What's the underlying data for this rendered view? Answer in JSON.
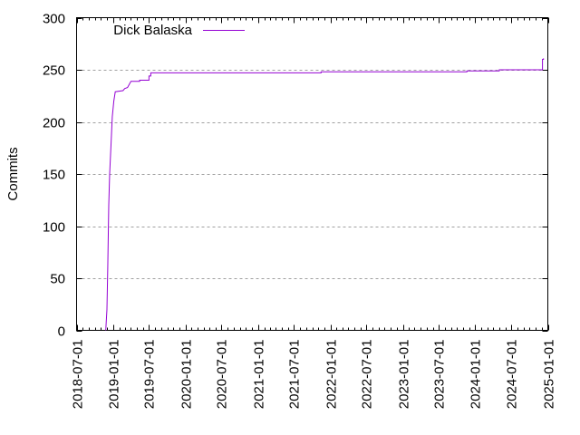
{
  "chart_data": {
    "type": "line",
    "title": "",
    "xlabel": "",
    "ylabel": "Commits",
    "ylim": [
      0,
      300
    ],
    "xlim": [
      "2018-07-01",
      "2025-01-01"
    ],
    "yticks": [
      0,
      50,
      100,
      150,
      200,
      250,
      300
    ],
    "xticks": [
      "2018-07-01",
      "2019-01-01",
      "2019-07-01",
      "2020-01-01",
      "2020-07-01",
      "2021-01-01",
      "2021-07-01",
      "2022-01-01",
      "2022-07-01",
      "2023-01-01",
      "2023-07-01",
      "2024-01-01",
      "2024-07-01",
      "2025-01-01"
    ],
    "grid": "horizontal dashed at y ticks",
    "legend_position": "top-left inside",
    "series": [
      {
        "name": "Dick Balaska",
        "color": "#9400d3",
        "step": true,
        "points": [
          {
            "x": "2018-11-25",
            "y": 0
          },
          {
            "x": "2018-12-01",
            "y": 20
          },
          {
            "x": "2018-12-05",
            "y": 60
          },
          {
            "x": "2018-12-10",
            "y": 120
          },
          {
            "x": "2018-12-15",
            "y": 150
          },
          {
            "x": "2018-12-22",
            "y": 180
          },
          {
            "x": "2018-12-28",
            "y": 205
          },
          {
            "x": "2019-01-05",
            "y": 220
          },
          {
            "x": "2019-01-12",
            "y": 229
          },
          {
            "x": "2019-02-20",
            "y": 230
          },
          {
            "x": "2019-03-01",
            "y": 232
          },
          {
            "x": "2019-03-15",
            "y": 233
          },
          {
            "x": "2019-04-01",
            "y": 239
          },
          {
            "x": "2019-05-15",
            "y": 240
          },
          {
            "x": "2019-07-01",
            "y": 244
          },
          {
            "x": "2019-07-10",
            "y": 247
          },
          {
            "x": "2021-11-15",
            "y": 248
          },
          {
            "x": "2023-11-20",
            "y": 249
          },
          {
            "x": "2024-05-01",
            "y": 250
          },
          {
            "x": "2024-12-05",
            "y": 260
          },
          {
            "x": "2024-12-10",
            "y": 261
          }
        ]
      }
    ]
  },
  "legend": {
    "label": "Dick Balaska"
  },
  "axes": {
    "ylabel": "Commits",
    "yticks": [
      "0",
      "50",
      "100",
      "150",
      "200",
      "250",
      "300"
    ],
    "xticks": [
      "2018-07-01",
      "2019-01-01",
      "2019-07-01",
      "2020-01-01",
      "2020-07-01",
      "2021-01-01",
      "2021-07-01",
      "2022-01-01",
      "2022-07-01",
      "2023-01-01",
      "2023-07-01",
      "2024-01-01",
      "2024-07-01",
      "2025-01-01"
    ]
  }
}
